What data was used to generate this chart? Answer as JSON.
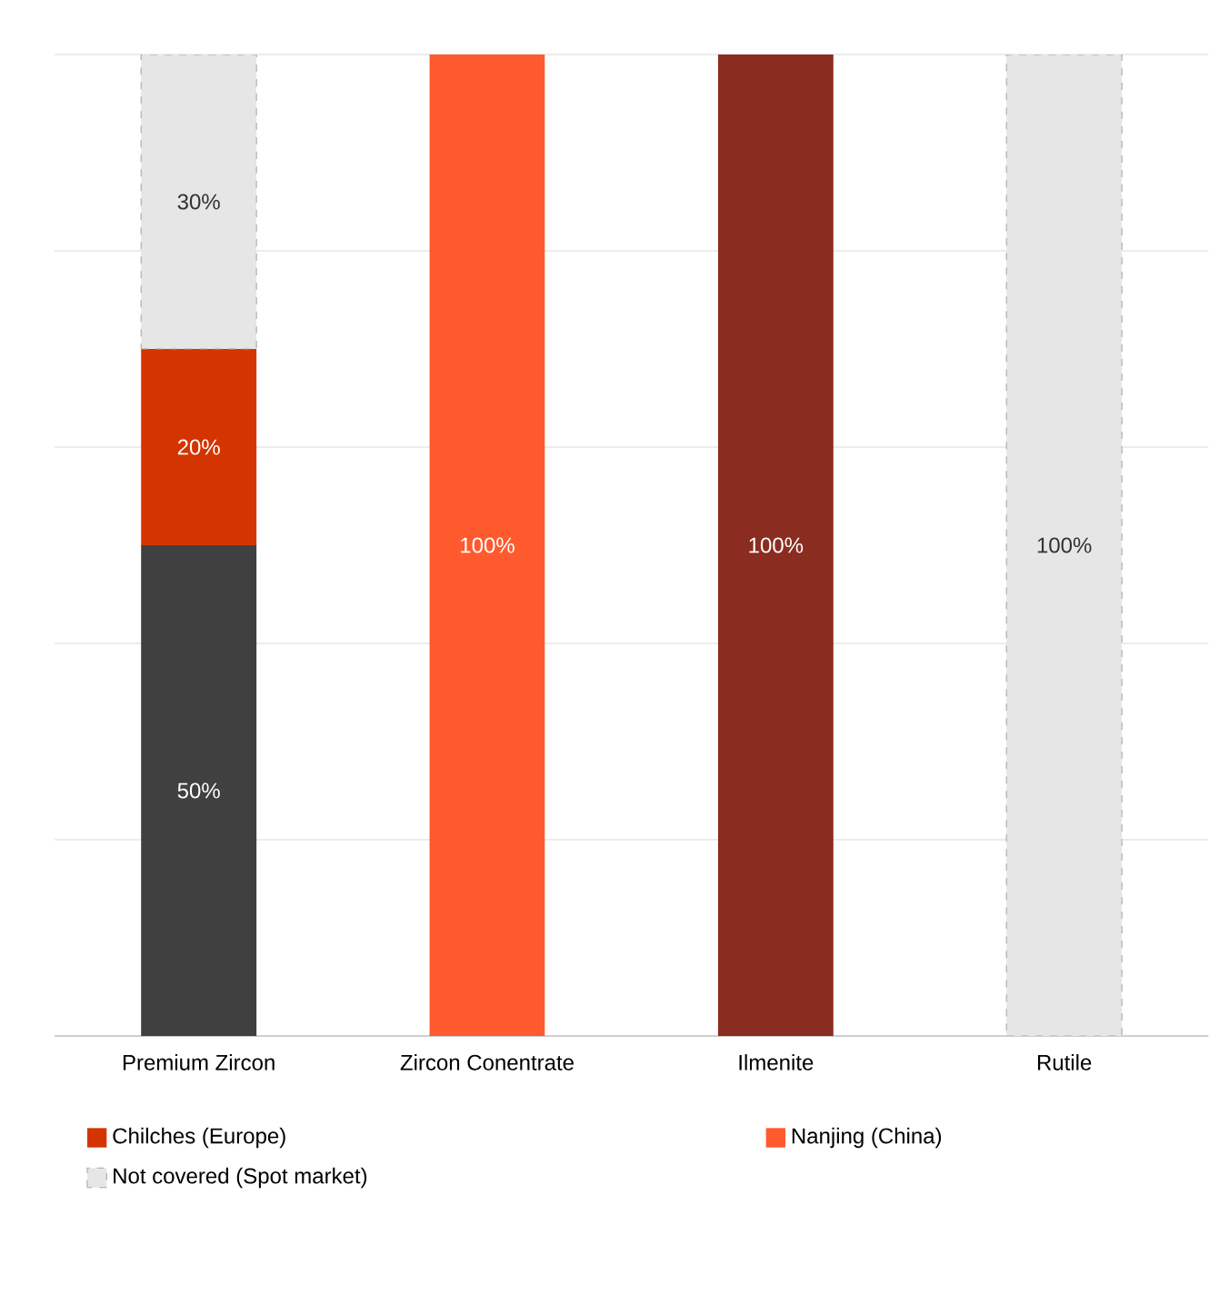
{
  "chart_data": {
    "type": "bar",
    "stacked": true,
    "categories": [
      "Premium Zircon",
      "Zircon Conentrate",
      "Ilmenite",
      "Rutile"
    ],
    "series": [
      {
        "color": "#404040",
        "values": [
          50,
          null,
          null,
          null
        ],
        "value_labels": [
          "50%",
          null,
          null,
          null
        ]
      },
      {
        "name": "Chilches (Europe)",
        "color": "#d43500",
        "values": [
          20,
          null,
          null,
          null
        ],
        "value_labels": [
          "20%",
          null,
          null,
          null
        ]
      },
      {
        "name": "Nanjing (China)",
        "color": "#ff5a2d",
        "values": [
          null,
          100,
          null,
          null
        ],
        "value_labels": [
          null,
          "100%",
          null,
          null
        ]
      },
      {
        "color": "#8b2c20",
        "values": [
          null,
          null,
          100,
          null
        ],
        "value_labels": [
          null,
          null,
          "100%",
          null
        ]
      },
      {
        "name": "Not covered (Spot market)",
        "color": "#e6e6e6",
        "line_style": "dashed",
        "values": [
          30,
          null,
          null,
          100
        ],
        "value_labels": [
          "30%",
          null,
          null,
          "100%"
        ]
      }
    ],
    "ylim": [
      0,
      100
    ],
    "yticks": [
      0,
      20,
      40,
      60,
      80,
      100
    ],
    "grid": "y",
    "tick_labels": "x",
    "legend": "bottom"
  }
}
